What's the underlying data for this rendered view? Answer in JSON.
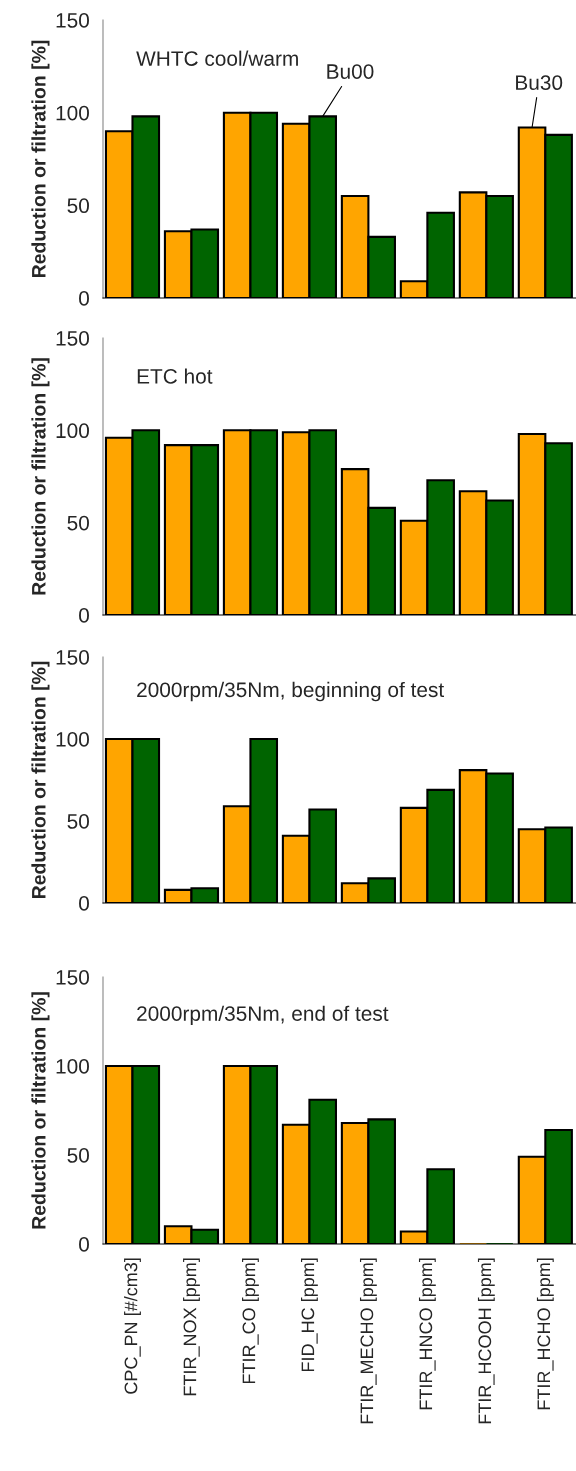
{
  "chart_data": [
    {
      "type": "bar",
      "title": "WHTC cool/warm",
      "ylabel": "Reduction or filtration [%]",
      "categories": [
        "CPC_PN [#/cm3]",
        "FTIR_NOX [ppm]",
        "FTIR_CO [ppm]",
        "FID_HC [ppm]",
        "FTIR_MECHO [ppm]",
        "FTIR_HNCO [ppm]",
        "FTIR_HCOOH [ppm]",
        "FTIR_HCHO [ppm]"
      ],
      "ylim": [
        0,
        150
      ],
      "yticks": [
        0,
        50,
        100,
        150
      ],
      "tick_labels": "y",
      "series": [
        {
          "color": "#ffa500",
          "values": [
            90,
            36,
            100,
            94,
            55,
            9,
            57,
            92
          ]
        },
        {
          "color": "#006400",
          "values": [
            98,
            37,
            100,
            98,
            33,
            46,
            55,
            88
          ]
        }
      ],
      "annotations": [
        {
          "text": "Bu00",
          "x": "FID_HC [ppm]",
          "y": 98
        },
        {
          "text": "Bu30",
          "x": "FTIR_HCHO [ppm]",
          "y": 92
        }
      ]
    },
    {
      "type": "bar",
      "title": "ETC hot",
      "ylabel": "Reduction or filtration [%]",
      "categories": [
        "CPC_PN [#/cm3]",
        "FTIR_NOX [ppm]",
        "FTIR_CO [ppm]",
        "FID_HC [ppm]",
        "FTIR_MECHO [ppm]",
        "FTIR_HNCO [ppm]",
        "FTIR_HCOOH [ppm]",
        "FTIR_HCHO [ppm]"
      ],
      "ylim": [
        0,
        150
      ],
      "yticks": [
        0,
        50,
        100,
        150
      ],
      "tick_labels": "y",
      "series": [
        {
          "color": "#ffa500",
          "values": [
            96,
            92,
            100,
            99,
            79,
            51,
            67,
            98
          ]
        },
        {
          "color": "#006400",
          "values": [
            100,
            92,
            100,
            100,
            58,
            73,
            62,
            93
          ]
        }
      ]
    },
    {
      "type": "bar",
      "title": "2000rpm/35Nm, beginning of test",
      "ylabel": "Reduction or filtration [%]",
      "categories": [
        "CPC_PN [#/cm3]",
        "FTIR_NOX [ppm]",
        "FTIR_CO [ppm]",
        "FID_HC [ppm]",
        "FTIR_MECHO [ppm]",
        "FTIR_HNCO [ppm]",
        "FTIR_HCOOH [ppm]",
        "FTIR_HCHO [ppm]"
      ],
      "ylim": [
        0,
        150
      ],
      "yticks": [
        0,
        50,
        100,
        150
      ],
      "tick_labels": "y",
      "series": [
        {
          "color": "#ffa500",
          "values": [
            100,
            8,
            59,
            41,
            12,
            58,
            81,
            45
          ]
        },
        {
          "color": "#006400",
          "values": [
            100,
            9,
            100,
            57,
            15,
            69,
            79,
            46
          ]
        }
      ]
    },
    {
      "type": "bar",
      "title": "2000rpm/35Nm, end of test",
      "ylabel": "Reduction or filtration [%]",
      "categories": [
        "CPC_PN [#/cm3]",
        "FTIR_NOX [ppm]",
        "FTIR_CO [ppm]",
        "FID_HC [ppm]",
        "FTIR_MECHO [ppm]",
        "FTIR_HNCO [ppm]",
        "FTIR_HCOOH [ppm]",
        "FTIR_HCHO [ppm]"
      ],
      "ylim": [
        0,
        150
      ],
      "yticks": [
        0,
        50,
        100,
        150
      ],
      "series": [
        {
          "color": "#ffa500",
          "values": [
            100,
            10,
            100,
            67,
            68,
            7,
            0,
            49
          ]
        },
        {
          "color": "#006400",
          "values": [
            100,
            8,
            100,
            81,
            70,
            42,
            0,
            64
          ]
        }
      ]
    }
  ]
}
